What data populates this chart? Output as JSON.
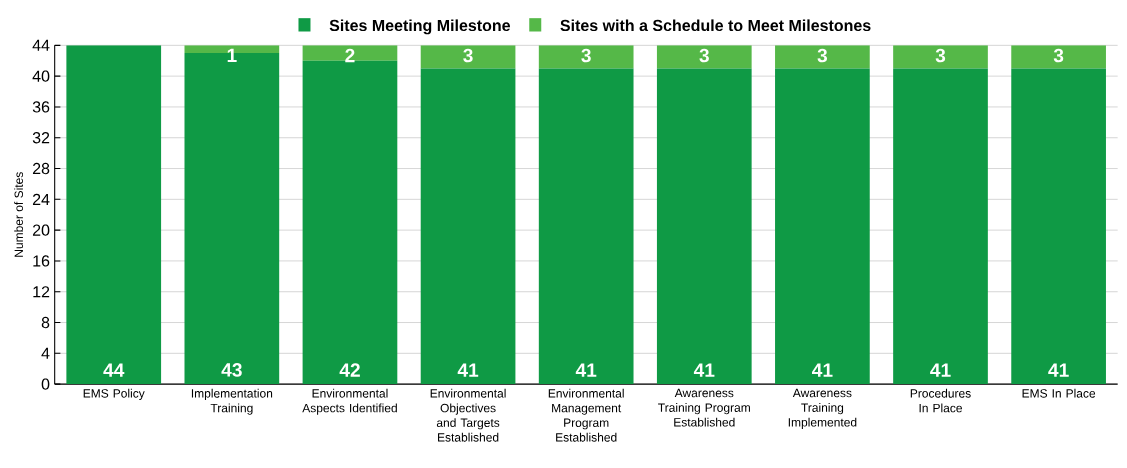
{
  "chart_data": {
    "type": "bar",
    "stacked": true,
    "ylabel": "Number of Sites",
    "categories": [
      "EMS Policy",
      "Implementation Training",
      "Environmental Aspects Identified",
      "Environmental Objectives and Targets Established",
      "Environmental Management Program Established",
      "Awareness Training Program Established",
      "Awareness Training Implemented",
      "Procedures In Place",
      "EMS In Place"
    ],
    "series": [
      {
        "name": "Sites Meeting Milestone",
        "color": "#0f9a45",
        "values": [
          44,
          43,
          42,
          41,
          41,
          41,
          41,
          41,
          41
        ],
        "value_labels": [
          "44",
          "43",
          "42",
          "41",
          "41",
          "41",
          "41",
          "41",
          "41"
        ]
      },
      {
        "name": "Sites with a Schedule to Meet Milestones",
        "color": "#55b848",
        "values": [
          0,
          1,
          2,
          3,
          3,
          3,
          3,
          3,
          3
        ],
        "value_labels": [
          null,
          "1",
          "2",
          "3",
          "3",
          "3",
          "3",
          "3",
          "3"
        ]
      }
    ],
    "ylim": [
      0,
      44
    ],
    "yticks": [
      0,
      4,
      8,
      12,
      16,
      20,
      24,
      28,
      32,
      36,
      40,
      44
    ],
    "grid": "y",
    "legend": "top"
  }
}
